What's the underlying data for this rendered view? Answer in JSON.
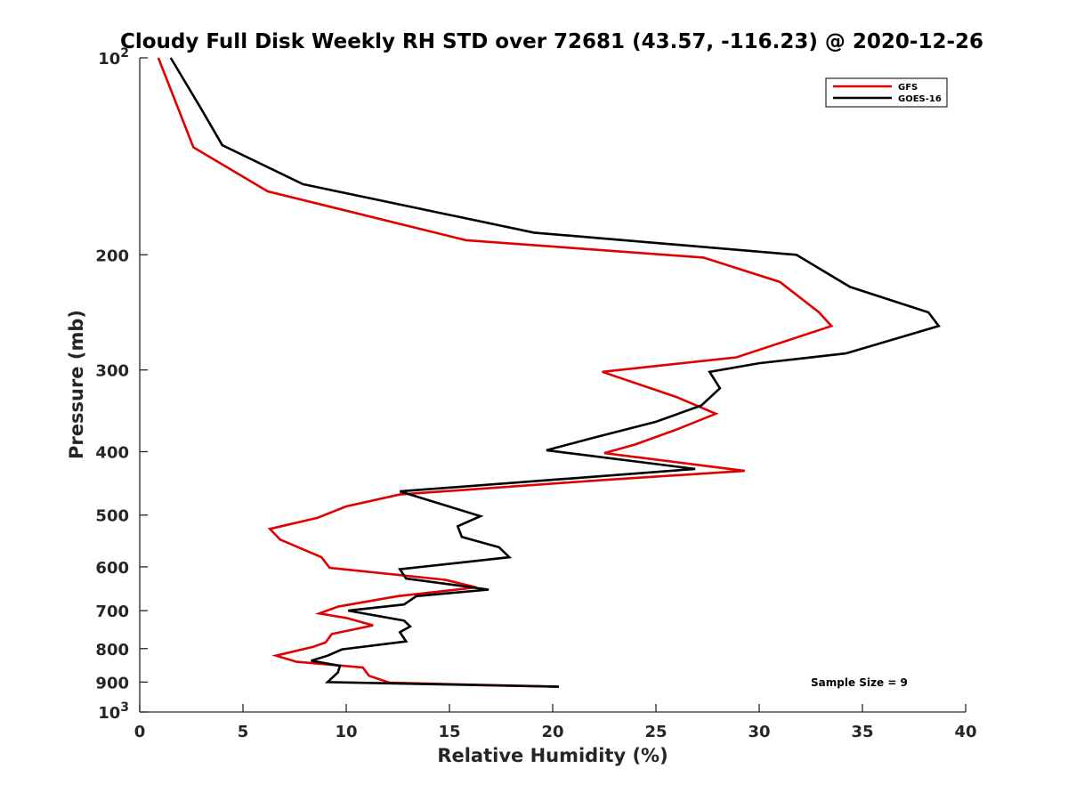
{
  "chart_data": {
    "type": "line",
    "title": "Cloudy Full Disk Weekly RH STD over 72681 (43.57, -116.23) @ 2020-12-26",
    "xlabel": "Relative Humidity (%)",
    "ylabel": "Pressure (mb)",
    "xlim": [
      0,
      40
    ],
    "ylim": [
      100,
      1000
    ],
    "y_scale": "log",
    "y_reversed": true,
    "x_ticks": [
      "0",
      "5",
      "10",
      "15",
      "20",
      "25",
      "30",
      "35",
      "40"
    ],
    "y_ticks": [
      {
        "value": 100,
        "base": "10",
        "exp": "2"
      },
      {
        "value": 200,
        "label": "200"
      },
      {
        "value": 300,
        "label": "300"
      },
      {
        "value": 400,
        "label": "400"
      },
      {
        "value": 500,
        "label": "500"
      },
      {
        "value": 600,
        "label": "600"
      },
      {
        "value": 700,
        "label": "700"
      },
      {
        "value": 800,
        "label": "800"
      },
      {
        "value": 900,
        "label": "900"
      },
      {
        "value": 1000,
        "base": "10",
        "exp": "3"
      }
    ],
    "grid": false,
    "legend_position": "top-right",
    "annotation": "Sample Size = 9",
    "series": [
      {
        "name": "GFS",
        "color": "#e00000",
        "x": [
          0.9,
          2.6,
          6.2,
          15.8,
          27.3,
          31.0,
          32.9,
          33.5,
          28.9,
          22.4,
          26.0,
          27.9,
          26.0,
          24.0,
          22.5,
          29.3,
          22.4,
          12.6,
          10.0,
          8.6,
          6.3,
          6.8,
          8.8,
          9.2,
          14.8,
          16.3,
          12.5,
          9.6,
          8.7,
          10.0,
          11.3,
          9.3,
          9.0,
          8.4,
          6.6,
          7.6,
          10.8,
          11.1,
          12.1,
          20.3
        ],
        "y": [
          100,
          137,
          160,
          190,
          202,
          220,
          245,
          257,
          287,
          302,
          330,
          350,
          370,
          390,
          402,
          428,
          442,
          465,
          485,
          505,
          525,
          545,
          580,
          602,
          628,
          645,
          665,
          690,
          707,
          718,
          737,
          760,
          783,
          795,
          820,
          838,
          855,
          880,
          902,
          915
        ]
      },
      {
        "name": "GOES-16",
        "color": "#000000",
        "x": [
          1.5,
          3.0,
          4.0,
          7.9,
          19.1,
          31.8,
          34.4,
          38.2,
          38.7,
          34.2,
          30.0,
          27.6,
          28.1,
          27.2,
          25.0,
          22.1,
          19.7,
          26.9,
          20.7,
          12.6,
          16.5,
          15.4,
          15.6,
          17.4,
          17.9,
          12.6,
          12.9,
          16.9,
          13.4,
          12.8,
          10.1,
          12.8,
          13.1,
          12.6,
          12.9,
          9.8,
          9.1,
          8.3,
          9.7,
          9.6,
          9.1,
          20.3
        ],
        "y": [
          100,
          120,
          136,
          156,
          185,
          200,
          224,
          245,
          257,
          283,
          293,
          302,
          320,
          340,
          360,
          380,
          398,
          425,
          440,
          460,
          502,
          520,
          540,
          560,
          580,
          605,
          625,
          650,
          665,
          685,
          700,
          725,
          740,
          755,
          780,
          802,
          820,
          835,
          850,
          870,
          900,
          915
        ]
      }
    ]
  }
}
